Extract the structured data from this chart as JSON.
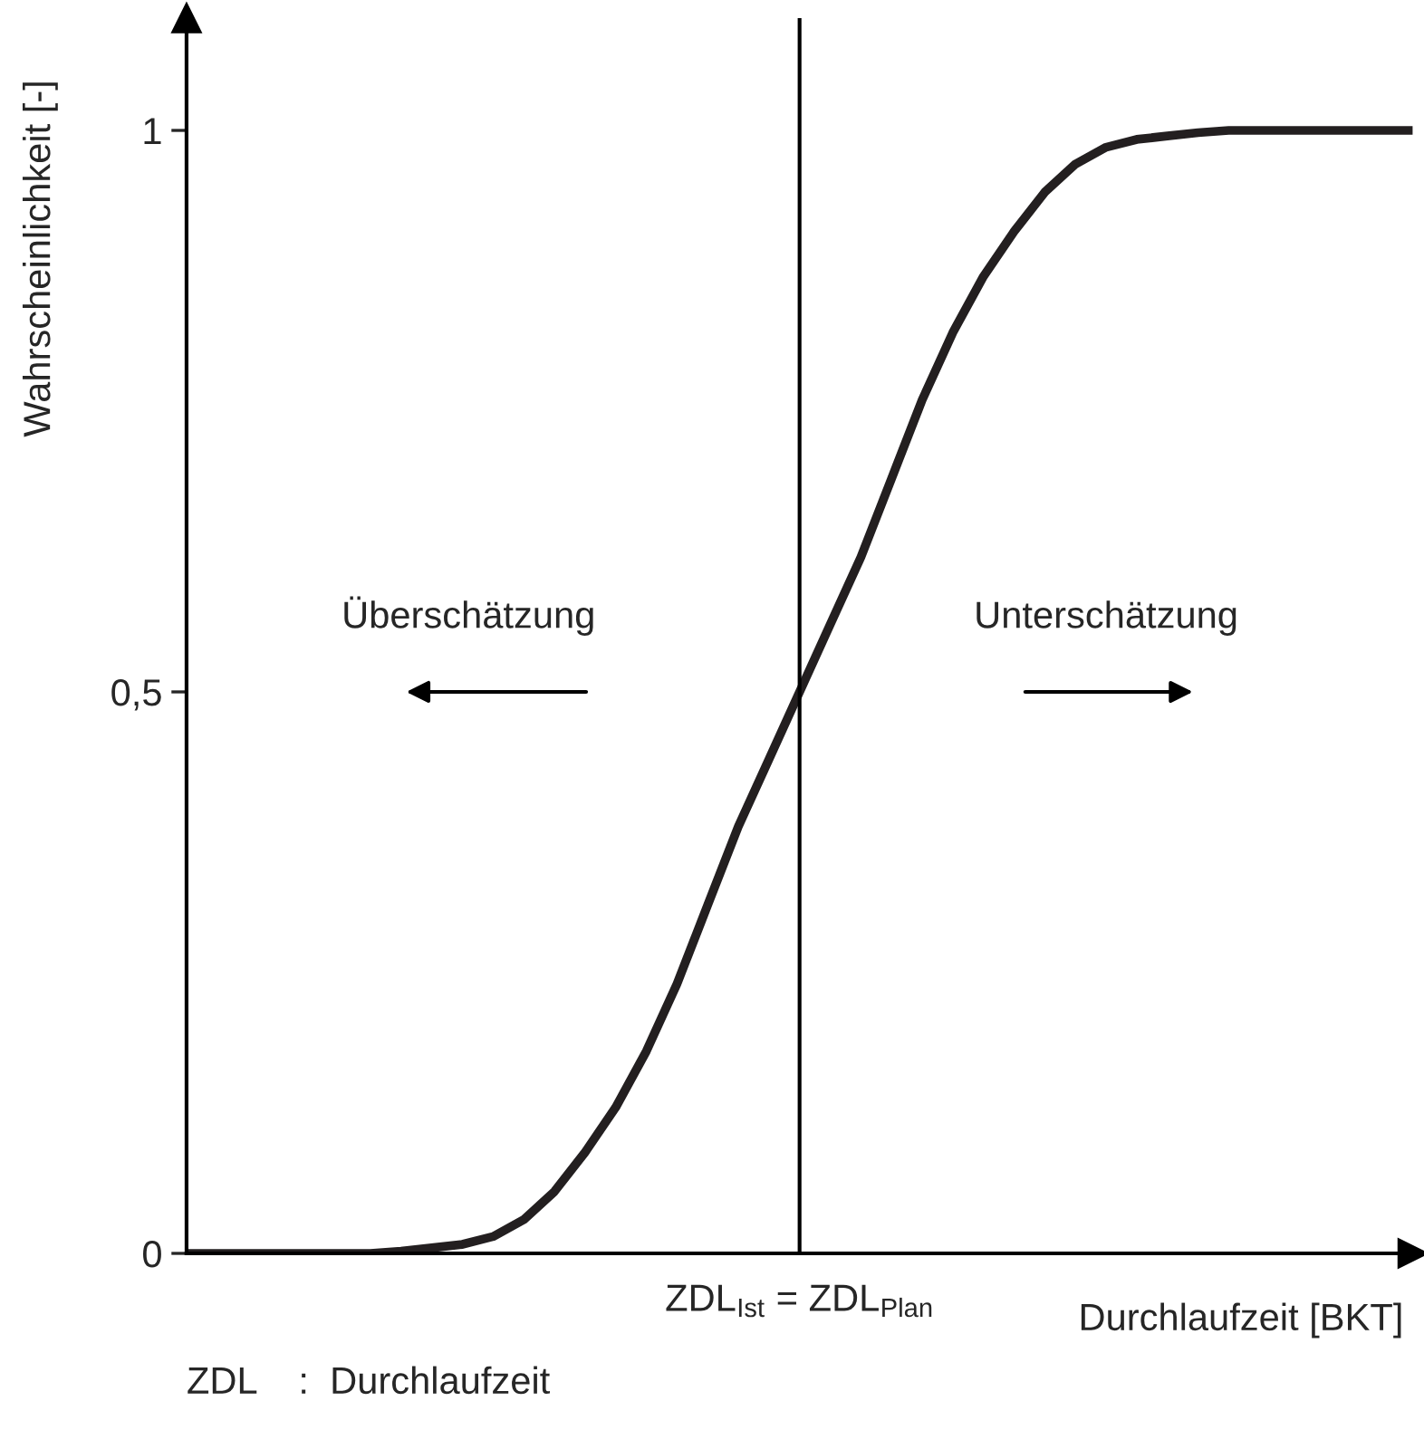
{
  "chart_data": {
    "type": "line",
    "xlabel": "Durchlaufzeit [BKT]",
    "ylabel": "Wahrscheinlichkeit [-]",
    "categories": [
      null,
      null,
      null,
      null,
      null,
      null,
      null,
      null,
      null,
      null,
      null,
      null,
      null,
      null,
      null,
      null,
      null,
      null,
      null,
      null,
      null,
      null,
      null,
      null,
      null,
      null,
      null,
      null,
      null,
      null,
      null,
      null,
      null,
      null,
      null,
      null,
      null,
      null,
      null,
      null,
      null
    ],
    "series": [
      {
        "color": "#231f20",
        "values": [
          0,
          0,
          0,
          0,
          0,
          0,
          0,
          0.002,
          0.005,
          0.008,
          0.015,
          0.03,
          0.055,
          0.09,
          0.13,
          0.18,
          0.24,
          0.31,
          0.38,
          0.44,
          0.5,
          0.56,
          0.62,
          0.69,
          0.76,
          0.82,
          0.87,
          0.91,
          0.945,
          0.97,
          0.985,
          0.992,
          0.995,
          0.998,
          1,
          1,
          1,
          1,
          1,
          1,
          1
        ]
      }
    ],
    "ylim": [
      0,
      1.1
    ],
    "yticks": [
      {
        "value": 0,
        "label": "0"
      },
      {
        "value": 0.5,
        "label": "0,5"
      },
      {
        "value": 1,
        "label": "1"
      }
    ],
    "annotations": [
      "Überschätzung",
      "Unterschätzung",
      "ZDL    :  Durchlaufzeit",
      "ZDL$_{Ist}$ = ZDL$_{Plan}$"
    ],
    "tick_labels": "y",
    "grid": false,
    "line_style": "solid",
    "marker": "none"
  }
}
